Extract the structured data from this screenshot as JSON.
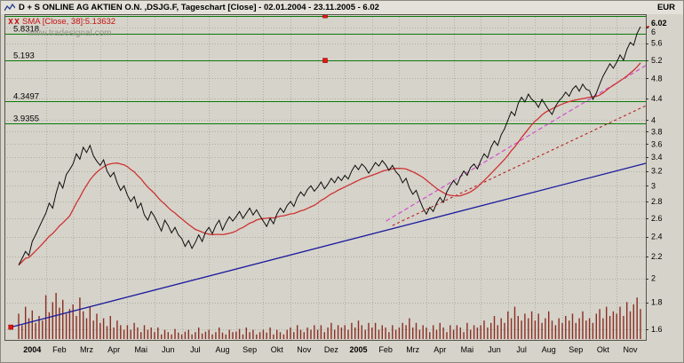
{
  "app": {
    "title": "D + S ONLINE AG AKTIEN O.N. ,DSJG.F, Tageschart [Close] - 02.01.2004 - 23.11.2005 - 6.02",
    "currency": "EUR",
    "watermark": "www.tradesignal.com"
  },
  "indicator": {
    "label": "SMA [Close, 38]:5.13632"
  },
  "colors": {
    "background": "#d6d3ca",
    "grid": "#b0aea4",
    "close_line": "#0d0d0d",
    "sma_line": "#cd3333",
    "hline_green": "#0a7a0a",
    "trend_blue": "#1a1a9e",
    "trend_magenta": "#d24fd2",
    "trend_red": "#b42222",
    "volume": "#8b2e23",
    "handle": "#ee1111"
  },
  "chart_data": {
    "type": "line",
    "scale": "log",
    "title": "D + S ONLINE AG AKTIEN O.N. ,DSJG.F, Tageschart [Close] - 02.01.2004 - 23.11.2005 - 6.02",
    "xlabel": "",
    "ylabel": "EUR",
    "x_axis": {
      "month_labels": [
        "2004",
        "Feb",
        "Mrz",
        "Apr",
        "Mai",
        "Jun",
        "Jul",
        "Aug",
        "Sep",
        "Okt",
        "Nov",
        "Dez",
        "2005",
        "Feb",
        "Mrz",
        "Apr",
        "Mai",
        "Jun",
        "Jul",
        "Aug",
        "Sep",
        "Okt",
        "Nov"
      ]
    },
    "y_axis": {
      "unit": "EUR",
      "ylim": [
        1.527,
        6.36
      ],
      "ticks": [
        6,
        5.6,
        5.2,
        4.8,
        4.4,
        4,
        3.8,
        3.6,
        3.4,
        3.2,
        3,
        2.8,
        2.6,
        2.4,
        2.2,
        2,
        1.8,
        1.6
      ],
      "current_price": "6.02",
      "current_price_value": 6.02
    },
    "series": [
      {
        "name": "Close",
        "color": "#0d0d0d",
        "values": [
          2.12,
          2.18,
          2.25,
          2.21,
          2.35,
          2.42,
          2.5,
          2.58,
          2.66,
          2.78,
          2.72,
          2.9,
          3.05,
          2.97,
          3.15,
          3.22,
          3.3,
          3.45,
          3.37,
          3.55,
          3.47,
          3.58,
          3.42,
          3.34,
          3.28,
          3.36,
          3.2,
          3.12,
          3.18,
          3.04,
          2.94,
          3.0,
          2.88,
          2.8,
          2.86,
          2.72,
          2.78,
          2.64,
          2.58,
          2.68,
          2.62,
          2.54,
          2.46,
          2.58,
          2.52,
          2.44,
          2.5,
          2.42,
          2.38,
          2.3,
          2.36,
          2.28,
          2.34,
          2.42,
          2.35,
          2.45,
          2.5,
          2.43,
          2.52,
          2.58,
          2.47,
          2.55,
          2.62,
          2.57,
          2.62,
          2.68,
          2.6,
          2.66,
          2.72,
          2.64,
          2.7,
          2.63,
          2.57,
          2.51,
          2.6,
          2.54,
          2.65,
          2.72,
          2.67,
          2.75,
          2.8,
          2.74,
          2.85,
          2.92,
          2.87,
          2.95,
          3.0,
          2.93,
          2.98,
          3.05,
          2.96,
          3.02,
          3.1,
          3.04,
          3.12,
          3.07,
          3.14,
          3.09,
          3.2,
          3.28,
          3.22,
          3.3,
          3.25,
          3.17,
          3.24,
          3.32,
          3.27,
          3.35,
          3.29,
          3.21,
          3.28,
          3.19,
          3.14,
          3.04,
          3.1,
          2.97,
          2.89,
          2.94,
          2.82,
          2.72,
          2.65,
          2.73,
          2.68,
          2.78,
          2.85,
          2.79,
          2.92,
          3.0,
          3.07,
          3.01,
          3.12,
          3.2,
          3.14,
          3.25,
          3.3,
          3.23,
          3.35,
          3.45,
          3.39,
          3.55,
          3.65,
          3.58,
          3.75,
          3.85,
          4.0,
          4.15,
          4.08,
          4.3,
          4.42,
          4.33,
          4.48,
          4.38,
          4.33,
          4.23,
          4.38,
          4.28,
          4.18,
          4.1,
          4.25,
          4.35,
          4.42,
          4.52,
          4.44,
          4.58,
          4.65,
          4.54,
          4.68,
          4.58,
          4.55,
          4.38,
          4.5,
          4.68,
          4.85,
          4.98,
          5.12,
          5.02,
          5.15,
          5.32,
          5.2,
          5.45,
          5.62,
          5.55,
          5.85,
          6.02
        ]
      },
      {
        "name": "SMA [Close, 38]",
        "color": "#cd3333",
        "derived": "sma",
        "window": 16,
        "last_value": "5.13632"
      }
    ],
    "volume": {
      "color": "#8b2e23",
      "values": [
        0.55,
        0.3,
        0.7,
        0.45,
        0.62,
        0.35,
        0.5,
        0.4,
        0.95,
        0.58,
        0.8,
        1.0,
        0.68,
        0.85,
        0.55,
        0.65,
        0.75,
        0.5,
        0.9,
        0.6,
        0.45,
        0.7,
        0.4,
        0.55,
        0.35,
        0.45,
        0.28,
        0.5,
        0.25,
        0.4,
        0.3,
        0.2,
        0.3,
        0.2,
        0.35,
        0.25,
        0.15,
        0.3,
        0.2,
        0.25,
        0.15,
        0.25,
        0.1,
        0.2,
        0.15,
        0.1,
        0.22,
        0.14,
        0.1,
        0.16,
        0.2,
        0.1,
        0.15,
        0.25,
        0.12,
        0.16,
        0.2,
        0.1,
        0.15,
        0.25,
        0.14,
        0.1,
        0.2,
        0.15,
        0.16,
        0.22,
        0.1,
        0.25,
        0.15,
        0.2,
        0.1,
        0.15,
        0.2,
        0.14,
        0.25,
        0.1,
        0.2,
        0.15,
        0.1,
        0.2,
        0.25,
        0.15,
        0.3,
        0.2,
        0.15,
        0.25,
        0.2,
        0.3,
        0.2,
        0.3,
        0.15,
        0.25,
        0.35,
        0.2,
        0.3,
        0.25,
        0.3,
        0.2,
        0.35,
        0.25,
        0.4,
        0.3,
        0.2,
        0.35,
        0.25,
        0.35,
        0.2,
        0.3,
        0.25,
        0.15,
        0.3,
        0.2,
        0.25,
        0.35,
        0.3,
        0.45,
        0.25,
        0.35,
        0.2,
        0.3,
        0.25,
        0.15,
        0.3,
        0.2,
        0.35,
        0.25,
        0.15,
        0.3,
        0.2,
        0.3,
        0.25,
        0.15,
        0.35,
        0.2,
        0.3,
        0.25,
        0.3,
        0.4,
        0.25,
        0.35,
        0.5,
        0.3,
        0.45,
        0.35,
        0.6,
        0.45,
        0.7,
        0.5,
        0.4,
        0.55,
        0.45,
        0.6,
        0.4,
        0.55,
        0.35,
        0.45,
        0.6,
        0.4,
        0.3,
        0.45,
        0.35,
        0.5,
        0.4,
        0.55,
        0.35,
        0.45,
        0.6,
        0.4,
        0.45,
        0.35,
        0.55,
        0.65,
        0.45,
        0.7,
        0.5,
        0.6,
        0.55,
        0.7,
        0.5,
        0.8,
        0.6,
        0.75,
        0.9,
        0.65
      ]
    },
    "hlines": [
      {
        "price": 6.32,
        "label": "",
        "handle": true
      },
      {
        "price": 5.8318,
        "label": "5.8318",
        "handle": false
      },
      {
        "price": 5.193,
        "label": "5.193",
        "handle": true
      },
      {
        "price": 4.3497,
        "label": "4.3497",
        "handle": false
      },
      {
        "price": 3.9355,
        "label": "3.9355",
        "handle": false
      }
    ],
    "trendlines": [
      {
        "name": "blue-support-trendline",
        "color": "#1a1a9e",
        "dash": "",
        "width": 1.3,
        "xf1": 0.01,
        "p1": 1.615,
        "xf2": 1.0,
        "p2": 3.31,
        "handle_start": true
      },
      {
        "name": "magenta-dashed-trendline",
        "color": "#d24fd2",
        "dash": "5,3",
        "width": 1.2,
        "xf1": 0.595,
        "p1": 2.57,
        "xf2": 1.0,
        "p2": 5.08,
        "handle_start": false
      },
      {
        "name": "red-dashed-trendline",
        "color": "#b42222",
        "dash": "3,3",
        "width": 1.1,
        "xf1": 0.605,
        "p1": 2.52,
        "xf2": 1.0,
        "p2": 4.26,
        "handle_start": false
      }
    ]
  }
}
